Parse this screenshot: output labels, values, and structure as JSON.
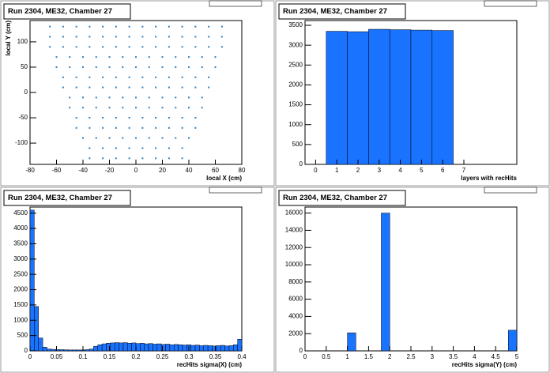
{
  "chart_data": [
    {
      "type": "scatter",
      "title": "Run 2304, ME32, Chamber 27",
      "x_label": "local X (cm)",
      "y_label": "local Y (cm)",
      "color": "#2f7fbf",
      "x": [
        -35,
        -25,
        -15,
        -5,
        5,
        15,
        25,
        35,
        -35,
        -25,
        -15,
        -5,
        5,
        15,
        25,
        35,
        -40,
        -30,
        -20,
        -10,
        0,
        10,
        20,
        30,
        40,
        -45,
        -35,
        -25,
        -15,
        -5,
        5,
        15,
        25,
        35,
        45,
        -45,
        -35,
        -25,
        -15,
        -5,
        5,
        15,
        25,
        35,
        45,
        -50,
        -40,
        -30,
        -20,
        -10,
        0,
        10,
        20,
        30,
        40,
        50,
        -50,
        -40,
        -30,
        -20,
        -10,
        0,
        10,
        20,
        30,
        40,
        50,
        -55,
        -45,
        -35,
        -25,
        -15,
        -5,
        5,
        15,
        25,
        35,
        45,
        55,
        -55,
        -45,
        -35,
        -25,
        -15,
        -5,
        5,
        15,
        25,
        35,
        45,
        55,
        -60,
        -50,
        -40,
        -30,
        -20,
        -10,
        0,
        10,
        20,
        30,
        40,
        50,
        60,
        -60,
        -50,
        -40,
        -30,
        -20,
        -10,
        0,
        10,
        20,
        30,
        40,
        50,
        60,
        -65,
        -55,
        -45,
        -35,
        -25,
        -15,
        -5,
        5,
        15,
        25,
        35,
        45,
        55,
        65,
        -65,
        -55,
        -45,
        -35,
        -25,
        -15,
        -5,
        5,
        15,
        25,
        35,
        45,
        55,
        65,
        -65,
        -55,
        -45,
        -35,
        -25,
        -15,
        -5,
        5,
        15,
        25,
        35,
        45,
        55,
        65
      ],
      "y": [
        -130,
        -130,
        -130,
        -130,
        -130,
        -130,
        -130,
        -130,
        -110,
        -110,
        -110,
        -110,
        -110,
        -110,
        -110,
        -110,
        -90,
        -90,
        -90,
        -90,
        -90,
        -90,
        -90,
        -90,
        -90,
        -70,
        -70,
        -70,
        -70,
        -70,
        -70,
        -70,
        -70,
        -70,
        -70,
        -50,
        -50,
        -50,
        -50,
        -50,
        -50,
        -50,
        -50,
        -50,
        -50,
        -30,
        -30,
        -30,
        -30,
        -30,
        -30,
        -30,
        -30,
        -30,
        -30,
        -30,
        -10,
        -10,
        -10,
        -10,
        -10,
        -10,
        -10,
        -10,
        -10,
        -10,
        -10,
        10,
        10,
        10,
        10,
        10,
        10,
        10,
        10,
        10,
        10,
        10,
        10,
        30,
        30,
        30,
        30,
        30,
        30,
        30,
        30,
        30,
        30,
        30,
        30,
        50,
        50,
        50,
        50,
        50,
        50,
        50,
        50,
        50,
        50,
        50,
        50,
        50,
        70,
        70,
        70,
        70,
        70,
        70,
        70,
        70,
        70,
        70,
        70,
        70,
        70,
        90,
        90,
        90,
        90,
        90,
        90,
        90,
        90,
        90,
        90,
        90,
        90,
        90,
        90,
        110,
        110,
        110,
        110,
        110,
        110,
        110,
        110,
        110,
        110,
        110,
        110,
        110,
        110,
        130,
        130,
        130,
        130,
        130,
        130,
        130,
        130,
        130,
        130,
        130,
        130,
        130,
        130
      ],
      "xlim": [
        -80,
        80
      ],
      "ylim": [
        -142,
        142
      ],
      "xticks": [
        -80,
        -60,
        -40,
        -20,
        0,
        20,
        40,
        60,
        80
      ],
      "yticks": [
        -100,
        -50,
        0,
        50,
        100
      ]
    },
    {
      "type": "histogram",
      "title": "Run 2304, ME32, Chamber 27",
      "x_label": "layers with recHits",
      "color": "#1a73ff",
      "bins": [
        0.5,
        1.5,
        2.5,
        3.5,
        4.5,
        5.5,
        6.5
      ],
      "counts": [
        3350,
        3340,
        3400,
        3390,
        3380,
        3370
      ],
      "xlim": [
        -0.5,
        9.5
      ],
      "ylim": [
        0,
        3620
      ],
      "xticks": [
        0,
        1,
        2,
        3,
        4,
        5,
        6,
        7
      ],
      "yticks": [
        0,
        500,
        1000,
        1500,
        2000,
        2500,
        3000,
        3500
      ]
    },
    {
      "type": "histogram",
      "title": "Run 2304, ME32, Chamber 27",
      "x_label": "recHits sigma(X) (cm)",
      "color": "#1a73ff",
      "bins": [
        0,
        0.008,
        0.016,
        0.024,
        0.032,
        0.04,
        0.048,
        0.056,
        0.064,
        0.072,
        0.08,
        0.088,
        0.096,
        0.104,
        0.112,
        0.12,
        0.128,
        0.136,
        0.144,
        0.152,
        0.16,
        0.168,
        0.176,
        0.184,
        0.192,
        0.2,
        0.208,
        0.216,
        0.224,
        0.232,
        0.24,
        0.248,
        0.256,
        0.264,
        0.272,
        0.28,
        0.288,
        0.296,
        0.304,
        0.312,
        0.32,
        0.328,
        0.336,
        0.344,
        0.352,
        0.36,
        0.368,
        0.376,
        0.384,
        0.392,
        0.4
      ],
      "counts": [
        4600,
        1450,
        420,
        120,
        60,
        50,
        40,
        40,
        35,
        30,
        30,
        30,
        30,
        40,
        60,
        150,
        200,
        230,
        250,
        260,
        270,
        260,
        270,
        250,
        260,
        240,
        250,
        230,
        240,
        220,
        230,
        210,
        220,
        200,
        210,
        200,
        190,
        200,
        180,
        190,
        170,
        180,
        170,
        160,
        170,
        180,
        160,
        170,
        200,
        380
      ],
      "xlim": [
        0,
        0.4
      ],
      "ylim": [
        0,
        4700
      ],
      "xticks": [
        0,
        0.05,
        0.1,
        0.15,
        0.2,
        0.25,
        0.3,
        0.35,
        0.4
      ],
      "yticks": [
        0,
        500,
        1000,
        1500,
        2000,
        2500,
        3000,
        3500,
        4000,
        4500
      ]
    },
    {
      "type": "histogram",
      "title": "Run 2304, ME32, Chamber 27",
      "x_label": "recHits sigma(Y) (cm)",
      "color": "#1a73ff",
      "bins": [
        0,
        0.2,
        0.4,
        0.6,
        0.8,
        1,
        1.2,
        1.4,
        1.6,
        1.8,
        2,
        2.2,
        2.4,
        2.6,
        2.8,
        3,
        3.2,
        3.4,
        3.6,
        3.8,
        4,
        4.2,
        4.4,
        4.6,
        4.8,
        5
      ],
      "counts": [
        0,
        0,
        0,
        0,
        0,
        2100,
        0,
        0,
        0,
        16000,
        0,
        0,
        0,
        0,
        0,
        0,
        0,
        0,
        0,
        0,
        0,
        0,
        0,
        0,
        2400
      ],
      "xlim": [
        0,
        5
      ],
      "ylim": [
        0,
        16700
      ],
      "xticks": [
        0,
        0.5,
        1,
        1.5,
        2,
        2.5,
        3,
        3.5,
        4,
        4.5,
        5
      ],
      "yticks": [
        0,
        2000,
        4000,
        6000,
        8000,
        10000,
        12000,
        14000,
        16000
      ]
    }
  ]
}
